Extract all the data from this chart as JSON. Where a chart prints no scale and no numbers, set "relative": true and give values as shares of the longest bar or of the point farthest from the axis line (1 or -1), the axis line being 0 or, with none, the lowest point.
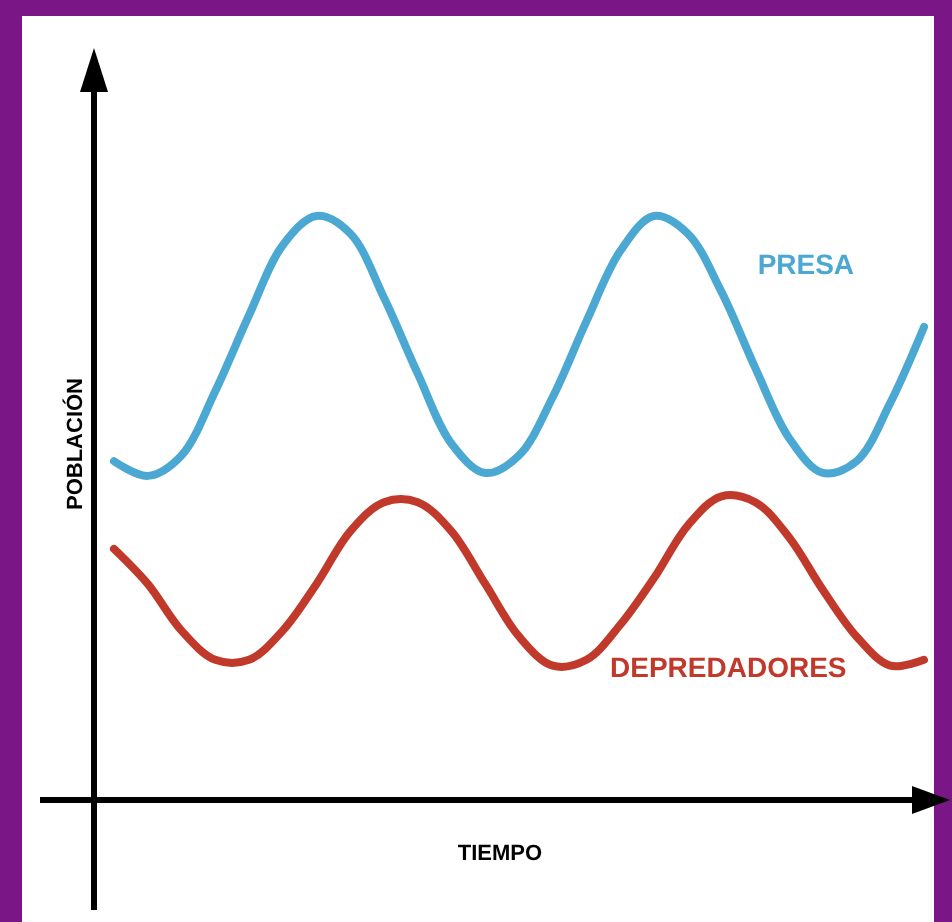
{
  "chart_data": {
    "type": "line",
    "relative": true,
    "xlabel": "TIEMPO",
    "ylabel": "POBLACIÓN",
    "marker": "none",
    "line_style": "solid",
    "categories": [
      null,
      null,
      null,
      null,
      null,
      null,
      null,
      null,
      null,
      null,
      null,
      null,
      null,
      null,
      null,
      null,
      null,
      null,
      null,
      null,
      null,
      null,
      null,
      null,
      null
    ],
    "series": [
      {
        "name": "PRESA",
        "color": "#4aa8d2",
        "values": [
          0.58,
          0.555,
          0.59,
          0.7,
          0.83,
          0.95,
          1.0,
          0.97,
          0.86,
          0.73,
          0.61,
          0.56,
          0.59,
          0.69,
          0.82,
          0.94,
          1.0,
          0.97,
          0.87,
          0.74,
          0.62,
          0.56,
          0.58,
          0.68,
          0.81
        ]
      },
      {
        "name": "DEPREDADORES",
        "color": "#c0392b",
        "values": [
          0.43,
          0.37,
          0.29,
          0.24,
          0.24,
          0.29,
          0.37,
          0.46,
          0.51,
          0.51,
          0.46,
          0.37,
          0.28,
          0.23,
          0.24,
          0.3,
          0.38,
          0.47,
          0.52,
          0.51,
          0.45,
          0.36,
          0.28,
          0.23,
          0.24
        ]
      }
    ]
  }
}
